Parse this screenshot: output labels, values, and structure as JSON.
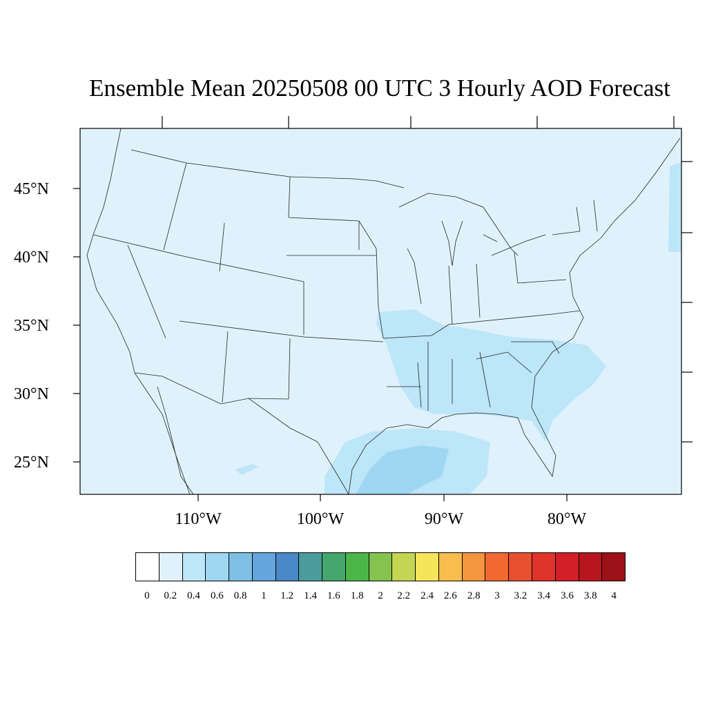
{
  "title": "Ensemble Mean 20250508 00 UTC 3 Hourly AOD Forecast",
  "lat_labels": [
    "45°N",
    "40°N",
    "35°N",
    "30°N",
    "25°N"
  ],
  "lon_labels": [
    "110°W",
    "100°W",
    "90°W",
    "80°W"
  ],
  "colorbar": {
    "labels": [
      "0",
      "0.2",
      "0.4",
      "0.6",
      "0.8",
      "1",
      "1.2",
      "1.4",
      "1.6",
      "1.8",
      "2",
      "2.2",
      "2.4",
      "2.6",
      "2.8",
      "3",
      "3.2",
      "3.4",
      "3.6",
      "3.8",
      "4"
    ],
    "colors": [
      "#ffffff",
      "#dff2fb",
      "#bde6f8",
      "#9fd7f3",
      "#7fbfe5",
      "#63a5dc",
      "#4a88c8",
      "#4b9c9c",
      "#45a66e",
      "#4bb648",
      "#85c34e",
      "#c3d553",
      "#f6e55b",
      "#f7bd4d",
      "#f5953f",
      "#f16930",
      "#e84f2e",
      "#df3429",
      "#d21f28",
      "#b8161f",
      "#9d1118"
    ]
  },
  "map": {
    "ocean_land_color": "#dff2fb",
    "aod_light_color": "#bde6f8",
    "aod_medium_color": "#9fd7f3"
  }
}
